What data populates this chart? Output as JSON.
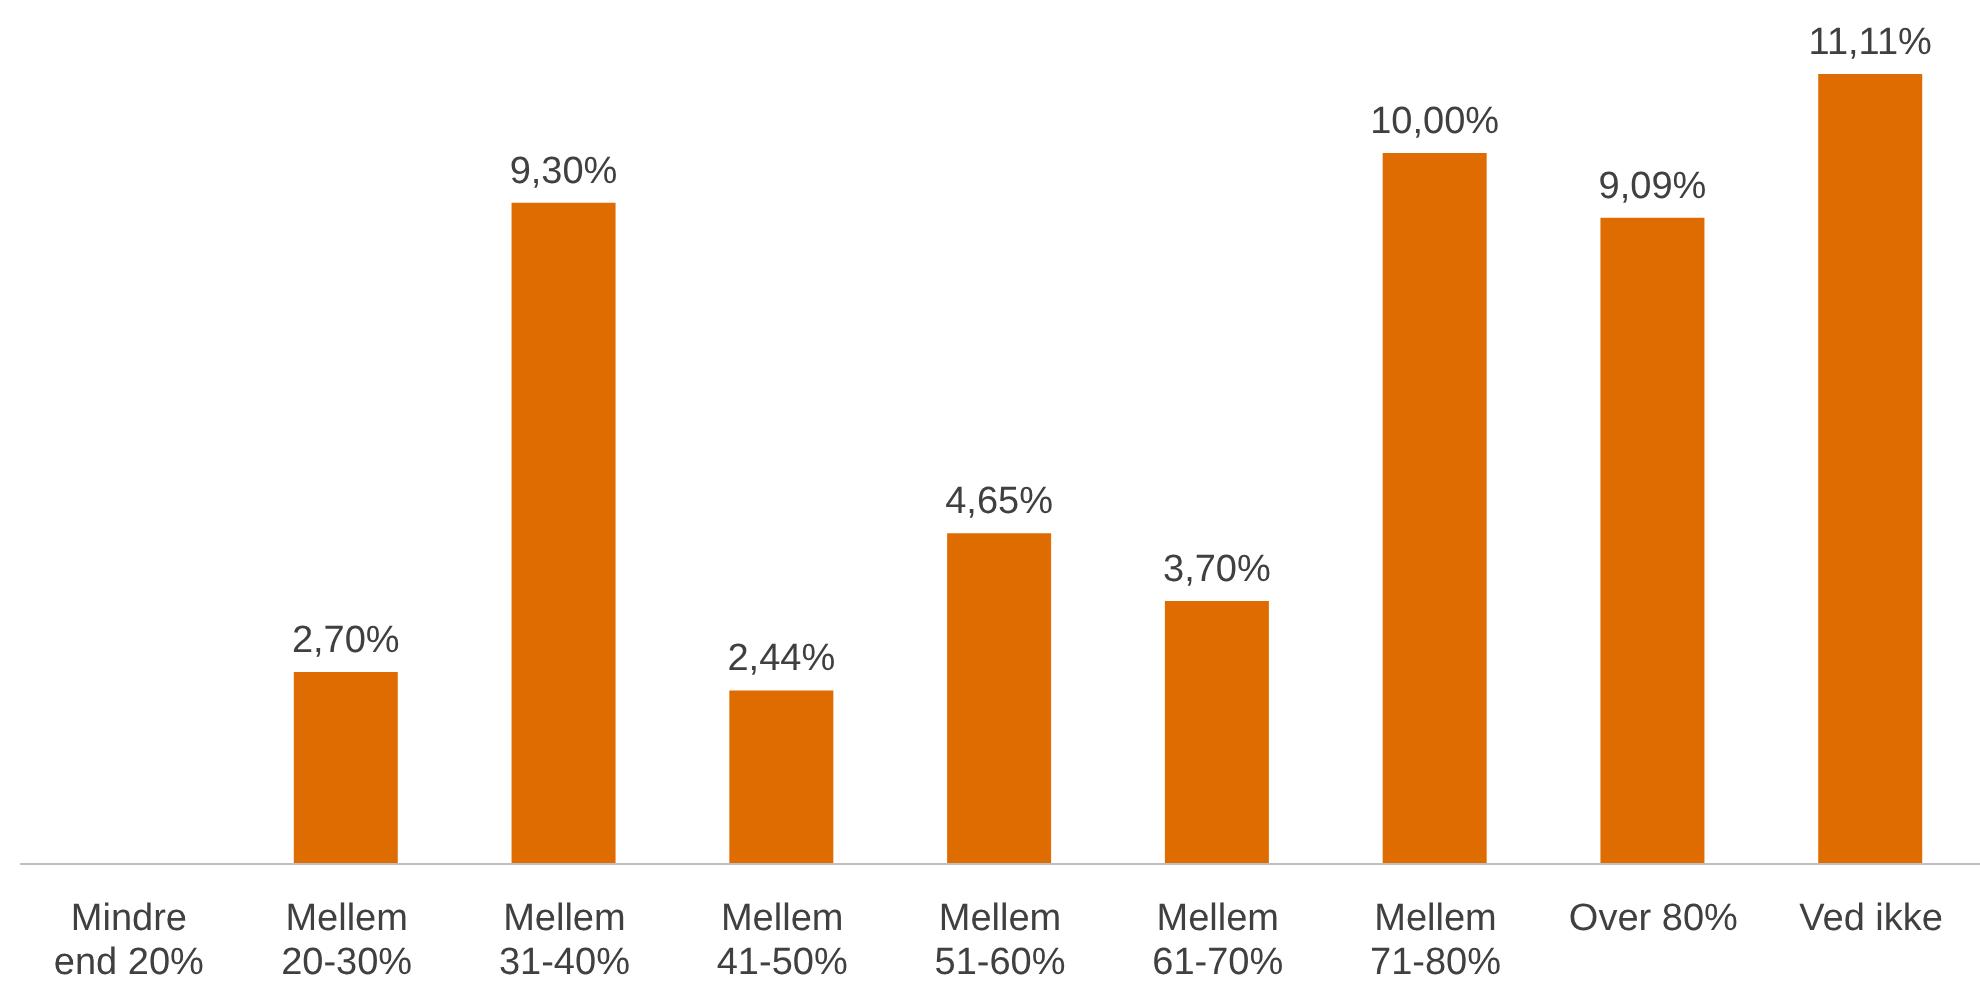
{
  "chart_data": {
    "type": "bar",
    "categories": [
      "Mindre end 20%",
      "Mellem 20-30%",
      "Mellem 31-40%",
      "Mellem 41-50%",
      "Mellem 51-60%",
      "Mellem 61-70%",
      "Mellem 71-80%",
      "Over 80%",
      "Ved ikke"
    ],
    "values": [
      null,
      2.7,
      9.3,
      2.44,
      4.65,
      3.7,
      10.0,
      9.09,
      11.11
    ],
    "value_labels": [
      null,
      "2,70%",
      "9,30%",
      "2,44%",
      "4,65%",
      "3,70%",
      "10,00%",
      "9,09%",
      "11,11%"
    ],
    "color": "#df6c00"
  }
}
